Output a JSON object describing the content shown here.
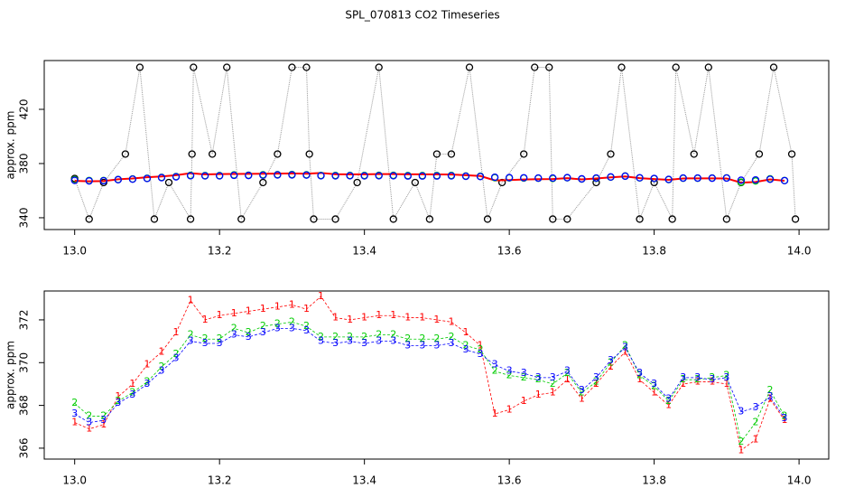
{
  "chart_data": [
    {
      "type": "scatter",
      "title": "SPL_070813  CO2 Timeseries",
      "ylabel": "approx. ppm",
      "xlim": [
        12.958,
        14.041
      ],
      "ylim": [
        331.3,
        456
      ],
      "xticks": [
        {
          "value": 13.0,
          "label": "13.0"
        },
        {
          "value": 13.2,
          "label": "13.2"
        },
        {
          "value": 13.4,
          "label": "13.4"
        },
        {
          "value": 13.6,
          "label": "13.6"
        },
        {
          "value": 13.8,
          "label": "13.8"
        },
        {
          "value": 14.0,
          "label": "14.0"
        }
      ],
      "yticks": [
        340,
        380,
        420
      ],
      "x": [
        13.0,
        13.02,
        13.04,
        13.06,
        13.08,
        13.1,
        13.12,
        13.14,
        13.16,
        13.18,
        13.2,
        13.22,
        13.24,
        13.26,
        13.28,
        13.3,
        13.32,
        13.34,
        13.36,
        13.38,
        13.4,
        13.42,
        13.44,
        13.46,
        13.48,
        13.5,
        13.52,
        13.54,
        13.56,
        13.58,
        13.6,
        13.62,
        13.64,
        13.66,
        13.68,
        13.7,
        13.72,
        13.74,
        13.76,
        13.78,
        13.8,
        13.82,
        13.84,
        13.86,
        13.88,
        13.9,
        13.92,
        13.94,
        13.96,
        13.98
      ],
      "series": [
        {
          "style": "dotted-circles",
          "color": "#000000",
          "x": [
            13.0,
            13.02,
            13.04,
            13.07,
            13.09,
            13.11,
            13.13,
            13.16,
            13.162,
            13.164,
            13.19,
            13.21,
            13.23,
            13.26,
            13.28,
            13.3,
            13.32,
            13.324,
            13.33,
            13.36,
            13.39,
            13.42,
            13.44,
            13.47,
            13.49,
            13.5,
            13.52,
            13.545,
            13.57,
            13.59,
            13.62,
            13.635,
            13.655,
            13.66,
            13.68,
            13.72,
            13.74,
            13.755,
            13.78,
            13.8,
            13.825,
            13.83,
            13.855,
            13.875,
            13.9,
            13.92,
            13.945,
            13.965,
            13.99,
            13.995
          ],
          "values": [
            369,
            339,
            366,
            387,
            451,
            339,
            366,
            339,
            387,
            451,
            387,
            451,
            339,
            366,
            387,
            451,
            451,
            387,
            339,
            339,
            366,
            451,
            339,
            366,
            339,
            387,
            387,
            451,
            339,
            366,
            387,
            451,
            451,
            339,
            339,
            366,
            387,
            451,
            339,
            366,
            339,
            451,
            387,
            451,
            339,
            366,
            387,
            451,
            387,
            339
          ]
        },
        {
          "style": "line",
          "color": "#ff0000",
          "values": [
            367.2,
            366.9,
            367.1,
            368.4,
            369.0,
            369.9,
            370.5,
            371.4,
            372.9,
            372.0,
            372.2,
            372.3,
            372.4,
            372.5,
            372.6,
            372.7,
            372.5,
            373.1,
            372.1,
            372.0,
            372.1,
            372.2,
            372.2,
            372.1,
            372.1,
            372.0,
            371.9,
            371.4,
            370.8,
            367.6,
            367.8,
            368.2,
            368.5,
            368.6,
            369.2,
            368.3,
            369.0,
            369.8,
            370.5,
            369.2,
            368.6,
            368.0,
            369.0,
            369.1,
            369.1,
            369.0,
            365.9,
            366.4,
            368.3,
            367.3
          ]
        },
        {
          "style": "circles",
          "color": "#00cc00",
          "values": [
            368.1,
            367.5,
            367.5,
            368.2,
            368.6,
            369.1,
            369.8,
            370.4,
            371.3,
            371.1,
            371.1,
            371.6,
            371.4,
            371.7,
            371.8,
            371.9,
            371.7,
            371.2,
            371.2,
            371.2,
            371.2,
            371.3,
            371.3,
            371.1,
            371.1,
            371.1,
            371.2,
            370.8,
            370.6,
            369.6,
            369.4,
            369.3,
            369.2,
            369.0,
            369.5,
            368.6,
            369.1,
            370.0,
            370.8,
            369.4,
            368.9,
            368.2,
            369.2,
            369.2,
            369.3,
            369.4,
            366.3,
            367.2,
            368.7,
            367.5
          ]
        },
        {
          "style": "circles",
          "color": "#0000ff",
          "values": [
            367.6,
            367.2,
            367.3,
            368.1,
            368.5,
            369.0,
            369.6,
            370.2,
            371.0,
            370.9,
            370.9,
            371.3,
            371.2,
            371.4,
            371.6,
            371.6,
            371.5,
            371.0,
            370.9,
            371.0,
            370.9,
            371.0,
            371.0,
            370.8,
            370.8,
            370.8,
            370.9,
            370.6,
            370.4,
            369.9,
            369.6,
            369.5,
            369.3,
            369.3,
            369.6,
            368.7,
            369.3,
            370.1,
            370.7,
            369.5,
            369.0,
            368.3,
            369.3,
            369.3,
            369.2,
            369.3,
            367.7,
            367.9,
            368.4,
            367.4
          ]
        }
      ]
    },
    {
      "type": "scatter",
      "ylabel": "approx. ppm",
      "xlim": [
        12.958,
        14.041
      ],
      "ylim": [
        365.49,
        373.35
      ],
      "xticks": [
        {
          "value": 13.0,
          "label": "13.0"
        },
        {
          "value": 13.2,
          "label": "13.2"
        },
        {
          "value": 13.4,
          "label": "13.4"
        },
        {
          "value": 13.6,
          "label": "13.6"
        },
        {
          "value": 13.8,
          "label": "13.8"
        },
        {
          "value": 14.0,
          "label": "14.0"
        }
      ],
      "yticks": [
        366,
        368,
        370,
        372
      ],
      "x": [
        13.0,
        13.02,
        13.04,
        13.06,
        13.08,
        13.1,
        13.12,
        13.14,
        13.16,
        13.18,
        13.2,
        13.22,
        13.24,
        13.26,
        13.28,
        13.3,
        13.32,
        13.34,
        13.36,
        13.38,
        13.4,
        13.42,
        13.44,
        13.46,
        13.48,
        13.5,
        13.52,
        13.54,
        13.56,
        13.58,
        13.6,
        13.62,
        13.64,
        13.66,
        13.68,
        13.7,
        13.72,
        13.74,
        13.76,
        13.78,
        13.8,
        13.82,
        13.84,
        13.86,
        13.88,
        13.9,
        13.92,
        13.94,
        13.96,
        13.98
      ],
      "series": [
        {
          "marker": "1",
          "color": "#ff0000",
          "values": [
            367.2,
            366.9,
            367.1,
            368.4,
            369.0,
            369.9,
            370.5,
            371.4,
            372.9,
            372.0,
            372.2,
            372.3,
            372.4,
            372.5,
            372.6,
            372.7,
            372.5,
            373.1,
            372.1,
            372.0,
            372.1,
            372.2,
            372.2,
            372.1,
            372.1,
            372.0,
            371.9,
            371.4,
            370.8,
            367.6,
            367.8,
            368.2,
            368.5,
            368.6,
            369.2,
            368.3,
            369.0,
            369.8,
            370.5,
            369.2,
            368.6,
            368.0,
            369.0,
            369.1,
            369.1,
            369.0,
            365.9,
            366.4,
            368.3,
            367.3
          ]
        },
        {
          "marker": "2",
          "color": "#00cc00",
          "values": [
            368.1,
            367.5,
            367.5,
            368.2,
            368.6,
            369.1,
            369.8,
            370.4,
            371.3,
            371.1,
            371.1,
            371.6,
            371.4,
            371.7,
            371.8,
            371.9,
            371.7,
            371.2,
            371.2,
            371.2,
            371.2,
            371.3,
            371.3,
            371.1,
            371.1,
            371.1,
            371.2,
            370.8,
            370.6,
            369.6,
            369.4,
            369.3,
            369.2,
            369.0,
            369.5,
            368.6,
            369.1,
            370.0,
            370.8,
            369.4,
            368.9,
            368.2,
            369.2,
            369.2,
            369.3,
            369.4,
            366.3,
            367.2,
            368.7,
            367.5
          ]
        },
        {
          "marker": "3",
          "color": "#0000ff",
          "values": [
            367.6,
            367.2,
            367.3,
            368.1,
            368.5,
            369.0,
            369.6,
            370.2,
            371.0,
            370.9,
            370.9,
            371.3,
            371.2,
            371.4,
            371.6,
            371.6,
            371.5,
            371.0,
            370.9,
            371.0,
            370.9,
            371.0,
            371.0,
            370.8,
            370.8,
            370.8,
            370.9,
            370.6,
            370.4,
            369.9,
            369.6,
            369.5,
            369.3,
            369.3,
            369.6,
            368.7,
            369.3,
            370.1,
            370.7,
            369.5,
            369.0,
            368.3,
            369.3,
            369.3,
            369.2,
            369.3,
            367.7,
            367.9,
            368.4,
            367.4
          ]
        }
      ]
    }
  ]
}
